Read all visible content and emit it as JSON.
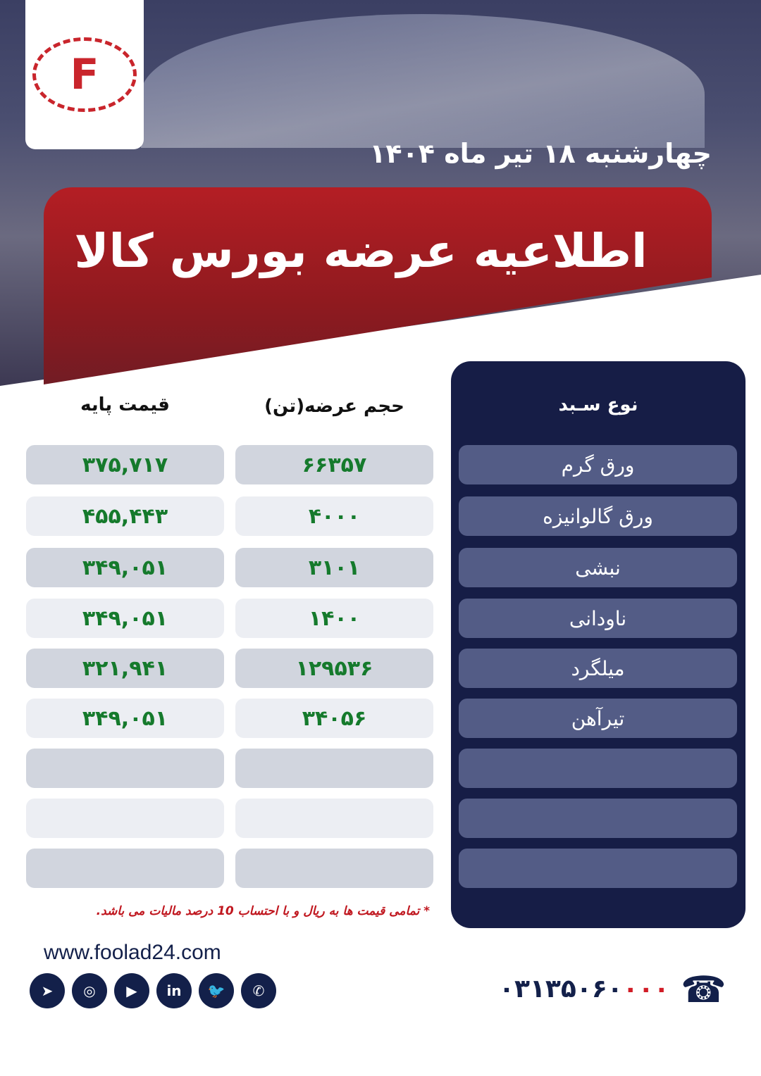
{
  "header": {
    "date": "چهارشنبه ۱۸ تیر ماه ۱۴۰۴",
    "title": "اطلاعیه عرضه بورس کالا",
    "logo_letter": "F"
  },
  "table": {
    "headers": {
      "type": "نوع سـبد",
      "volume": "حجم عرضه(تن)",
      "price": "قیمت پایه"
    },
    "rows": [
      {
        "type": "ورق گرم",
        "volume": "۶۶۳۵۷",
        "price": "۳۷۵,۷۱۷"
      },
      {
        "type": "ورق گالوانیزه",
        "volume": "۴۰۰۰",
        "price": "۴۵۵,۴۴۳"
      },
      {
        "type": "نبشی",
        "volume": "۳۱۰۱",
        "price": "۳۴۹,۰۵۱"
      },
      {
        "type": "ناودانی",
        "volume": "۱۴۰۰",
        "price": "۳۴۹,۰۵۱"
      },
      {
        "type": "میلگرد",
        "volume": "۱۲۹۵۳۶",
        "price": "۳۲۱,۹۴۱"
      },
      {
        "type": "تیرآهن",
        "volume": "۳۴۰۵۶",
        "price": "۳۴۹,۰۵۱"
      },
      {
        "type": "",
        "volume": "",
        "price": ""
      },
      {
        "type": "",
        "volume": "",
        "price": ""
      },
      {
        "type": "",
        "volume": "",
        "price": ""
      }
    ]
  },
  "footer": {
    "note": "* تمامی قیمت ها به ریال و با احتساب 10 درصد مالیات می باشد.",
    "website": "www.foolad24.com",
    "phone_main": "۰۳۱۳۵۰۶۰",
    "phone_red": "۰۰۰",
    "social_icons": [
      "telegram-icon",
      "instagram-icon",
      "youtube-icon",
      "linkedin-icon",
      "twitter-icon",
      "whatsapp-icon"
    ]
  },
  "colors": {
    "brand_red": "#b41e24",
    "navy": "#161d46",
    "value_green": "#157a2c"
  }
}
